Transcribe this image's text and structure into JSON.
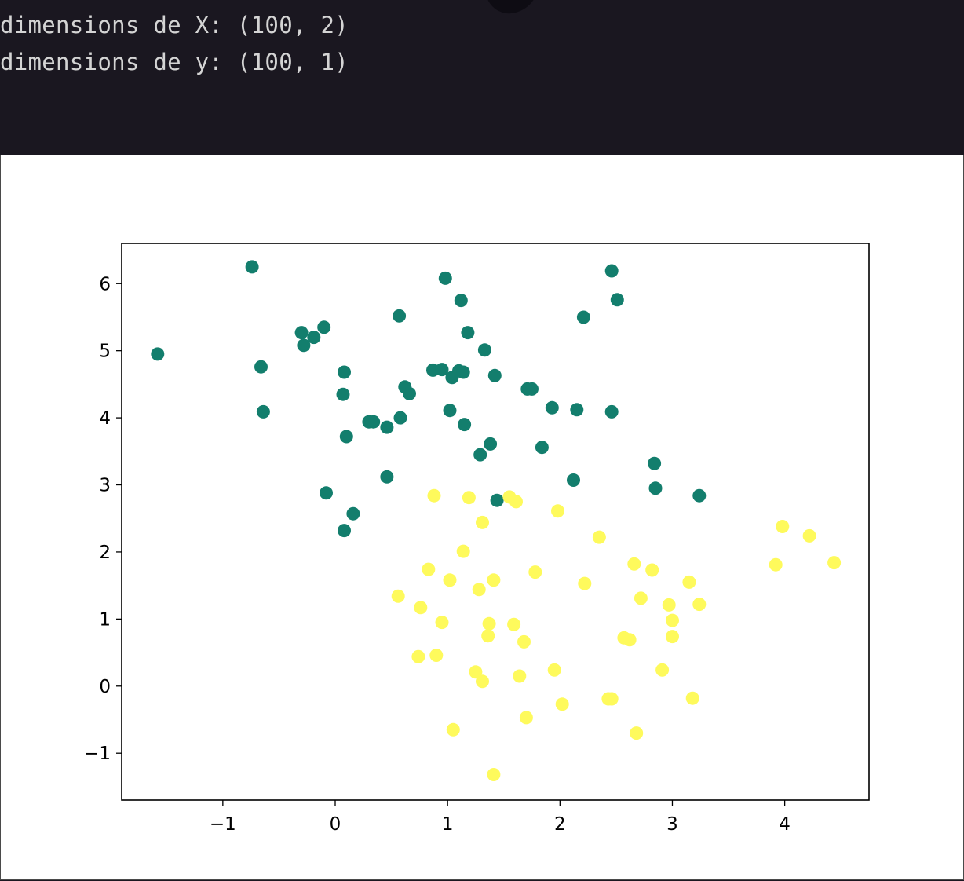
{
  "output": {
    "lines": [
      "dimensions de X: (100, 2)",
      "dimensions de y: (100, 1)"
    ]
  },
  "colors": {
    "class_0": "#137e6d",
    "class_1": "#fefa5c",
    "background_dark": "#1a1720",
    "text": "#d4d4d4"
  },
  "chart_data": {
    "type": "scatter",
    "title": "",
    "xlabel": "",
    "ylabel": "",
    "xlim": [
      -1.9,
      4.75
    ],
    "ylim": [
      -1.7,
      6.6
    ],
    "xticks": [
      -1,
      0,
      1,
      2,
      3,
      4
    ],
    "yticks": [
      -1,
      0,
      1,
      2,
      3,
      4,
      5,
      6
    ],
    "xtick_labels": [
      "−1",
      "0",
      "1",
      "2",
      "3",
      "4"
    ],
    "ytick_labels": [
      "−1",
      "0",
      "1",
      "2",
      "3",
      "4",
      "5",
      "6"
    ],
    "grid": false,
    "series": [
      {
        "color": "#137e6d",
        "points": [
          [
            -1.58,
            4.95
          ],
          [
            -0.74,
            6.25
          ],
          [
            -0.66,
            4.76
          ],
          [
            -0.64,
            4.09
          ],
          [
            -0.3,
            5.27
          ],
          [
            -0.28,
            5.08
          ],
          [
            -0.19,
            5.2
          ],
          [
            -0.1,
            5.35
          ],
          [
            -0.08,
            2.88
          ],
          [
            0.07,
            4.35
          ],
          [
            0.08,
            4.68
          ],
          [
            0.08,
            2.32
          ],
          [
            0.1,
            3.72
          ],
          [
            0.16,
            2.57
          ],
          [
            0.3,
            3.94
          ],
          [
            0.34,
            3.94
          ],
          [
            0.46,
            3.86
          ],
          [
            0.46,
            3.12
          ],
          [
            0.57,
            5.52
          ],
          [
            0.58,
            4.0
          ],
          [
            0.62,
            4.46
          ],
          [
            0.66,
            4.36
          ],
          [
            0.87,
            4.71
          ],
          [
            0.95,
            4.72
          ],
          [
            0.98,
            6.08
          ],
          [
            1.02,
            4.11
          ],
          [
            1.04,
            4.6
          ],
          [
            1.1,
            4.7
          ],
          [
            1.12,
            5.75
          ],
          [
            1.14,
            4.68
          ],
          [
            1.15,
            3.9
          ],
          [
            1.18,
            5.27
          ],
          [
            1.29,
            3.45
          ],
          [
            1.33,
            5.01
          ],
          [
            1.38,
            3.61
          ],
          [
            1.42,
            4.63
          ],
          [
            1.44,
            2.77
          ],
          [
            1.71,
            4.43
          ],
          [
            1.75,
            4.43
          ],
          [
            1.84,
            3.56
          ],
          [
            1.93,
            4.15
          ],
          [
            2.12,
            3.07
          ],
          [
            2.15,
            4.12
          ],
          [
            2.21,
            5.5
          ],
          [
            2.46,
            4.09
          ],
          [
            2.46,
            6.19
          ],
          [
            2.51,
            5.76
          ],
          [
            2.84,
            3.32
          ],
          [
            2.85,
            2.95
          ],
          [
            3.24,
            2.84
          ]
        ]
      },
      {
        "color": "#fefa5c",
        "points": [
          [
            0.56,
            1.34
          ],
          [
            0.74,
            0.44
          ],
          [
            0.76,
            1.17
          ],
          [
            0.83,
            1.74
          ],
          [
            0.88,
            2.84
          ],
          [
            0.9,
            0.46
          ],
          [
            0.95,
            0.95
          ],
          [
            1.02,
            1.58
          ],
          [
            1.05,
            -0.65
          ],
          [
            1.14,
            2.01
          ],
          [
            1.19,
            2.81
          ],
          [
            1.25,
            0.21
          ],
          [
            1.28,
            1.44
          ],
          [
            1.31,
            0.07
          ],
          [
            1.31,
            2.44
          ],
          [
            1.36,
            0.75
          ],
          [
            1.37,
            0.93
          ],
          [
            1.41,
            1.58
          ],
          [
            1.41,
            -1.32
          ],
          [
            1.55,
            2.82
          ],
          [
            1.59,
            0.92
          ],
          [
            1.61,
            2.75
          ],
          [
            1.64,
            0.15
          ],
          [
            1.68,
            0.66
          ],
          [
            1.7,
            -0.47
          ],
          [
            1.78,
            1.7
          ],
          [
            1.95,
            0.24
          ],
          [
            1.98,
            2.61
          ],
          [
            2.02,
            -0.27
          ],
          [
            2.22,
            1.53
          ],
          [
            2.35,
            2.22
          ],
          [
            2.43,
            -0.19
          ],
          [
            2.46,
            -0.19
          ],
          [
            2.57,
            0.72
          ],
          [
            2.62,
            0.69
          ],
          [
            2.66,
            1.82
          ],
          [
            2.68,
            -0.7
          ],
          [
            2.72,
            1.31
          ],
          [
            2.82,
            1.73
          ],
          [
            2.91,
            0.24
          ],
          [
            2.97,
            1.21
          ],
          [
            3.0,
            0.74
          ],
          [
            3.0,
            0.98
          ],
          [
            3.15,
            1.55
          ],
          [
            3.18,
            -0.18
          ],
          [
            3.24,
            1.22
          ],
          [
            3.92,
            1.81
          ],
          [
            3.98,
            2.38
          ],
          [
            4.22,
            2.24
          ],
          [
            4.44,
            1.84
          ]
        ]
      }
    ]
  }
}
